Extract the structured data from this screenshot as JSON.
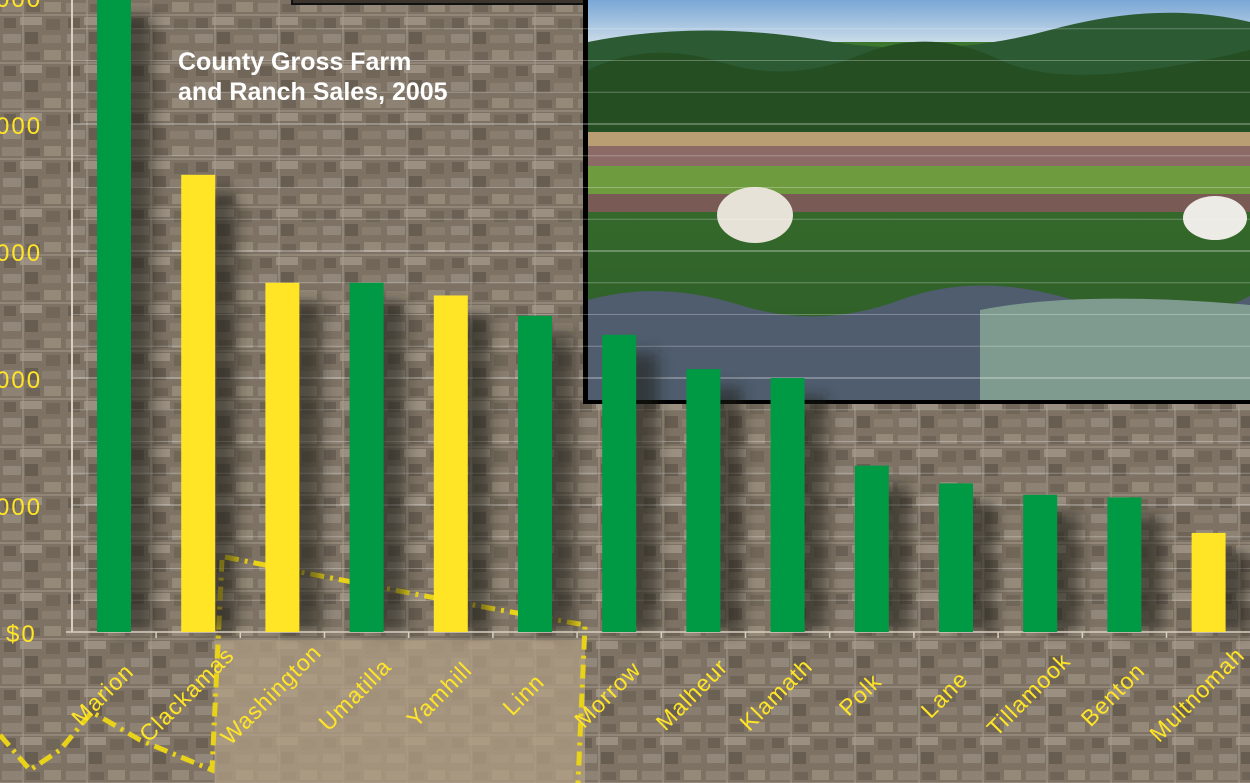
{
  "colors": {
    "green": "#009a44",
    "yellow": "#ffe526",
    "tick_text": "#ffe526",
    "title_text": "#ffffff",
    "aerial_base": "#7d7264",
    "photo_sky": "#8fb7d8",
    "photo_foliage": "#2f6a2c"
  },
  "chart_data": {
    "type": "bar",
    "title": "County Gross Farm and Ranch Sales, 2005",
    "title_lines": [
      "County Gross Farm",
      "and Ranch Sales, 2005"
    ],
    "xlabel": "",
    "ylabel": "",
    "y_tick_labels": [
      "$0",
      "000",
      "000",
      "000",
      "000",
      "000"
    ],
    "categories": [
      "Marion",
      "Clackamas",
      "Washington",
      "Umatilla",
      "Yamhill",
      "Linn",
      "Morrow",
      "Malheur",
      "Klamath",
      "Polk",
      "Lane",
      "Tillamook",
      "Benton",
      "Multnomah"
    ],
    "values": [
      5.0,
      3.6,
      2.75,
      2.75,
      2.65,
      2.49,
      2.34,
      2.07,
      2.0,
      1.31,
      1.17,
      1.08,
      1.06,
      0.78
    ],
    "bar_colors": [
      "green",
      "yellow",
      "yellow",
      "green",
      "yellow",
      "green",
      "green",
      "green",
      "green",
      "green",
      "green",
      "green",
      "green",
      "yellow"
    ],
    "ylim": [
      0,
      5
    ],
    "grid": true,
    "legend": "none"
  }
}
